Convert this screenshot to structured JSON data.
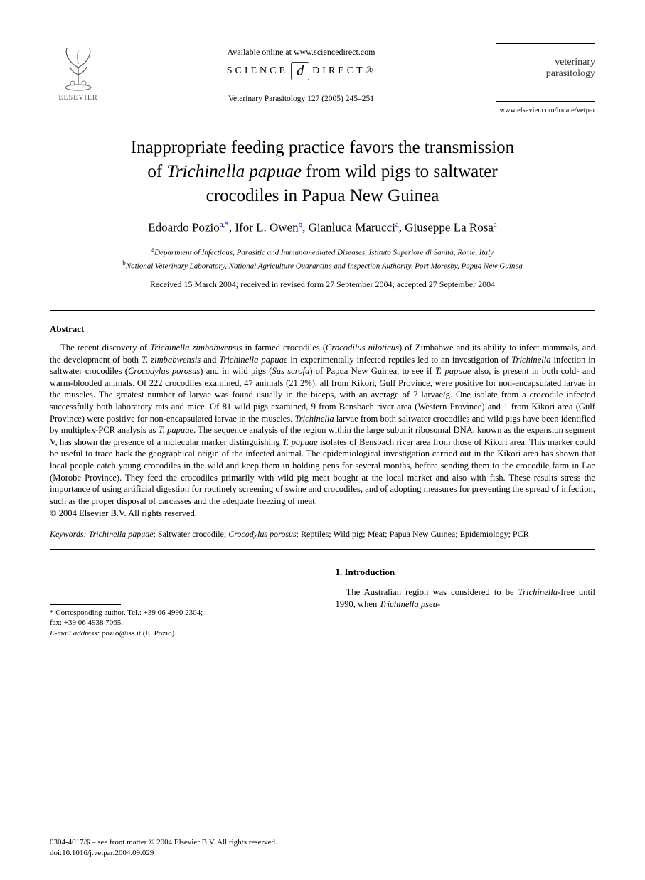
{
  "header": {
    "publisher_name": "ELSEVIER",
    "available_online": "Available online at www.sciencedirect.com",
    "science_direct_left": "SCIENCE",
    "science_direct_right": "DIRECT®",
    "citation": "Veterinary Parasitology 127 (2005) 245–251",
    "journal_line1": "veterinary",
    "journal_line2": "parasitology",
    "journal_url": "www.elsevier.com/locate/vetpar"
  },
  "title": {
    "line1": "Inappropriate feeding practice favors the transmission",
    "line2_prefix": "of ",
    "line2_species": "Trichinella papuae",
    "line2_suffix": " from wild pigs to saltwater",
    "line3": "crocodiles in Papua New Guinea"
  },
  "authors": [
    {
      "name": "Edoardo Pozio",
      "sup": "a,",
      "star": "*"
    },
    {
      "name": "Ifor L. Owen",
      "sup": "b"
    },
    {
      "name": "Gianluca Marucci",
      "sup": "a"
    },
    {
      "name": "Giuseppe La Rosa",
      "sup": "a"
    }
  ],
  "affiliations": [
    {
      "sup": "a",
      "text": "Department of Infectious, Parasitic and Immunomediated Diseases, Istituto Superiore di Sanità, Rome, Italy"
    },
    {
      "sup": "b",
      "text": "National Veterinary Laboratory, National Agriculture Quarantine and Inspection Authority, Port Moresby, Papua New Guinea"
    }
  ],
  "dates": "Received 15 March 2004; received in revised form 27 September 2004; accepted 27 September 2004",
  "abstract": {
    "heading": "Abstract",
    "body_html": "The recent discovery of <i>Trichinella zimbabwensis</i> in farmed crocodiles (<i>Crocodilus niloticus</i>) of Zimbabwe and its ability to infect mammals, and the development of both <i>T. zimbabwensis</i> and <i>Trichinella papuae</i> in experimentally infected reptiles led to an investigation of <i>Trichinella</i> infection in saltwater crocodiles (<i>Crocodylus porosus</i>) and in wild pigs (<i>Sus scrofa</i>) of Papua New Guinea, to see if <i>T. papuae</i> also, is present in both cold- and warm-blooded animals. Of 222 crocodiles examined, 47 animals (21.2%), all from Kikori, Gulf Province, were positive for non-encapsulated larvae in the muscles. The greatest number of larvae was found usually in the biceps, with an average of 7 larvae/g. One isolate from a crocodile infected successfully both laboratory rats and mice. Of 81 wild pigs examined, 9 from Bensbach river area (Western Province) and 1 from Kikori area (Gulf Province) were positive for non-encapsulated larvae in the muscles. <i>Trichinella</i> larvae from both saltwater crocodiles and wild pigs have been identified by multiplex-PCR analysis as <i>T. papuae</i>. The sequence analysis of the region within the large subunit ribosomal DNA, known as the expansion segment V, has shown the presence of a molecular marker distinguishing <i>T. papuae</i> isolates of Bensbach river area from those of Kikori area. This marker could be useful to trace back the geographical origin of the infected animal. The epidemiological investigation carried out in the Kikori area has shown that local people catch young crocodiles in the wild and keep them in holding pens for several months, before sending them to the crocodile farm in Lae (Morobe Province). They feed the crocodiles primarily with wild pig meat bought at the local market and also with fish. These results stress the importance of using artificial digestion for routinely screening of swine and crocodiles, and of adopting measures for preventing the spread of infection, such as the proper disposal of carcasses and the adequate freezing of meat.",
    "copyright": "© 2004 Elsevier B.V. All rights reserved."
  },
  "keywords": {
    "label": "Keywords:",
    "list_html": "<i>Trichinella papuae</i>; Saltwater crocodile; <i>Crocodylus porosus</i>; Reptiles; Wild pig; Meat; Papua New Guinea; Epidemiology; PCR"
  },
  "footnote": {
    "corr_label": "* Corresponding author. Tel.: +39 06 4990 2304;",
    "fax": "fax: +39 06 4938 7065.",
    "email_label": "E-mail address:",
    "email": "pozio@iss.it (E. Pozio)."
  },
  "section1": {
    "heading": "1. Introduction",
    "body_html": "The Australian region was considered to be <i>Trichinella</i>-free until 1990, when <i>Trichinella pseu-</i>"
  },
  "footer": {
    "line1": "0304-4017/$ – see front matter © 2004 Elsevier B.V. All rights reserved.",
    "line2": "doi:10.1016/j.vetpar.2004.09.029"
  },
  "colors": {
    "text": "#000000",
    "bg": "#ffffff",
    "sup_link": "#0000dd",
    "logo_gray": "#555555"
  },
  "typography": {
    "body_pt": 12.6,
    "title_pt": 25,
    "authors_pt": 17,
    "affil_pt": 11,
    "footnote_pt": 11,
    "family": "Times New Roman"
  }
}
